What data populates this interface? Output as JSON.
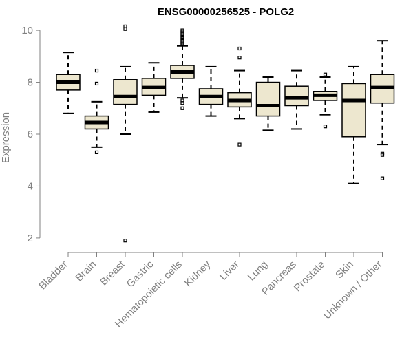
{
  "chart_data": {
    "type": "boxplot",
    "title": "ENSG00000256525 - POLG2",
    "xlabel": "",
    "ylabel": "Expression",
    "ylim": [
      1.6,
      10.4
    ],
    "yticks": [
      2,
      4,
      6,
      8,
      10
    ],
    "grid": false,
    "legend": "none",
    "box_fill": "#ede7cf",
    "box_stroke": "#000000",
    "categories": [
      "Bladder",
      "Brain",
      "Breast",
      "Gastric",
      "Hematopoietic cells",
      "Kidney",
      "Liver",
      "Lung",
      "Pancreas",
      "Prostate",
      "Skin",
      "Unknown / Other"
    ],
    "boxes": [
      {
        "category": "Bladder",
        "whisker_low": 6.8,
        "q1": 7.7,
        "median": 8.0,
        "q3": 8.3,
        "whisker_high": 9.15,
        "outliers": []
      },
      {
        "category": "Brain",
        "whisker_low": 5.5,
        "q1": 6.2,
        "median": 6.45,
        "q3": 6.7,
        "whisker_high": 7.25,
        "outliers": [
          5.3,
          7.95,
          8.45
        ]
      },
      {
        "category": "Breast",
        "whisker_low": 6.0,
        "q1": 7.15,
        "median": 7.45,
        "q3": 8.1,
        "whisker_high": 8.6,
        "outliers": [
          1.9,
          10.05,
          10.15
        ]
      },
      {
        "category": "Gastric",
        "whisker_low": 6.85,
        "q1": 7.5,
        "median": 7.8,
        "q3": 8.15,
        "whisker_high": 8.75,
        "outliers": []
      },
      {
        "category": "Hematopoietic cells",
        "whisker_low": 7.4,
        "q1": 8.15,
        "median": 8.4,
        "q3": 8.65,
        "whisker_high": 9.4,
        "outliers": [
          7.0,
          7.2,
          7.3,
          9.45,
          9.5,
          9.55,
          9.6,
          9.65,
          9.7,
          9.75,
          9.8,
          9.85,
          9.9,
          9.95,
          10.0
        ]
      },
      {
        "category": "Kidney",
        "whisker_low": 6.7,
        "q1": 7.15,
        "median": 7.45,
        "q3": 7.75,
        "whisker_high": 8.6,
        "outliers": []
      },
      {
        "category": "Liver",
        "whisker_low": 6.6,
        "q1": 7.05,
        "median": 7.3,
        "q3": 7.6,
        "whisker_high": 8.45,
        "outliers": [
          5.6,
          8.95,
          9.3
        ]
      },
      {
        "category": "Lung",
        "whisker_low": 6.15,
        "q1": 6.7,
        "median": 7.1,
        "q3": 8.0,
        "whisker_high": 8.2,
        "outliers": []
      },
      {
        "category": "Pancreas",
        "whisker_low": 6.2,
        "q1": 7.1,
        "median": 7.4,
        "q3": 7.85,
        "whisker_high": 8.45,
        "outliers": []
      },
      {
        "category": "Prostate",
        "whisker_low": 6.75,
        "q1": 7.3,
        "median": 7.5,
        "q3": 7.65,
        "whisker_high": 8.2,
        "outliers": [
          6.3,
          8.3
        ]
      },
      {
        "category": "Skin",
        "whisker_low": 4.1,
        "q1": 5.9,
        "median": 7.3,
        "q3": 7.95,
        "whisker_high": 8.6,
        "outliers": []
      },
      {
        "category": "Unknown / Other",
        "whisker_low": 5.6,
        "q1": 7.2,
        "median": 7.8,
        "q3": 8.3,
        "whisker_high": 9.6,
        "outliers": [
          4.3,
          5.2,
          5.25
        ]
      }
    ]
  }
}
